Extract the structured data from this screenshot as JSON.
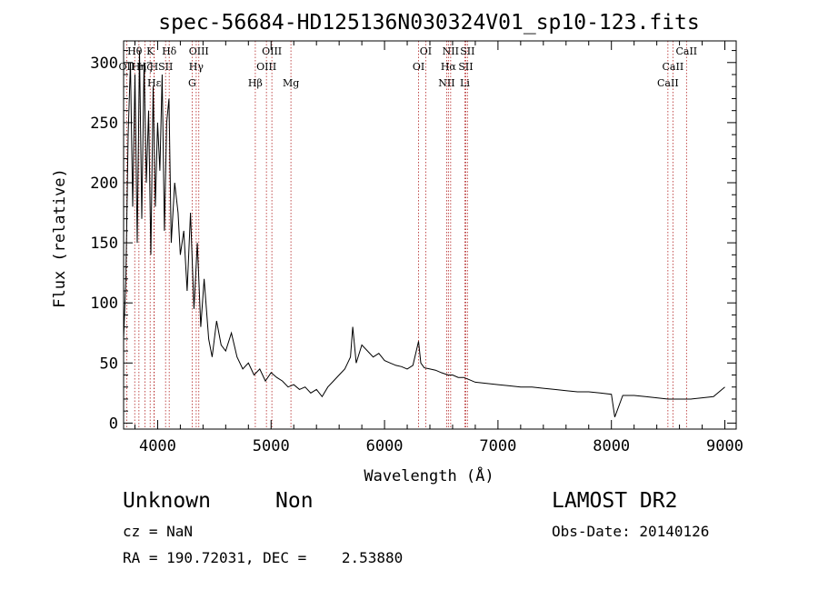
{
  "chart_data": {
    "type": "line",
    "title": "spec-56684-HD125136N030324V01_sp10-123.fits",
    "xlabel": "Wavelength (Å)",
    "ylabel": "Flux (relative)",
    "xlim": [
      3700,
      9100
    ],
    "ylim": [
      -5,
      318
    ],
    "x_ticks": [
      4000,
      5000,
      6000,
      7000,
      8000,
      9000
    ],
    "y_ticks": [
      0,
      50,
      100,
      150,
      200,
      250,
      300
    ],
    "grid": false,
    "series": [
      {
        "x": [
          3700,
          3720,
          3740,
          3760,
          3780,
          3800,
          3820,
          3840,
          3860,
          3880,
          3900,
          3920,
          3940,
          3960,
          3980,
          4000,
          4020,
          4040,
          4060,
          4080,
          4100,
          4120,
          4150,
          4180,
          4200,
          4230,
          4260,
          4290,
          4320,
          4350,
          4380,
          4410,
          4450,
          4480,
          4520,
          4560,
          4600,
          4650,
          4700,
          4750,
          4800,
          4850,
          4900,
          4950,
          5000,
          5050,
          5100,
          5150,
          5200,
          5250,
          5300,
          5350,
          5400,
          5450,
          5500,
          5550,
          5600,
          5650,
          5700,
          5720,
          5750,
          5800,
          5850,
          5900,
          5950,
          6000,
          6050,
          6100,
          6150,
          6200,
          6250,
          6300,
          6320,
          6350,
          6400,
          6450,
          6500,
          6560,
          6600,
          6650,
          6700,
          6750,
          6800,
          6900,
          7000,
          7100,
          7200,
          7300,
          7400,
          7500,
          7600,
          7700,
          7800,
          7900,
          8000,
          8030,
          8100,
          8200,
          8300,
          8400,
          8500,
          8600,
          8700,
          8800,
          8900,
          9000
        ],
        "y": [
          70,
          120,
          240,
          300,
          180,
          290,
          150,
          310,
          170,
          300,
          200,
          260,
          140,
          280,
          180,
          250,
          210,
          290,
          160,
          250,
          270,
          150,
          200,
          175,
          140,
          160,
          110,
          175,
          95,
          150,
          80,
          120,
          70,
          55,
          85,
          65,
          60,
          75,
          55,
          45,
          50,
          40,
          45,
          35,
          42,
          38,
          35,
          30,
          32,
          28,
          30,
          25,
          28,
          22,
          30,
          35,
          40,
          45,
          55,
          80,
          50,
          65,
          60,
          55,
          58,
          52,
          50,
          48,
          47,
          45,
          48,
          68,
          50,
          46,
          45,
          44,
          42,
          40,
          40,
          38,
          38,
          36,
          34,
          33,
          32,
          31,
          30,
          30,
          29,
          28,
          27,
          26,
          26,
          25,
          24,
          5,
          23,
          23,
          22,
          21,
          20,
          20,
          20,
          21,
          22,
          30
        ]
      }
    ],
    "spectral_lines": [
      {
        "label": "OII",
        "x": 3727,
        "row": 1
      },
      {
        "label": "Hθ",
        "x": 3798,
        "row": 0
      },
      {
        "label": "Hη",
        "x": 3835,
        "row": 1
      },
      {
        "label": "Hζ",
        "x": 3889,
        "row": 1
      },
      {
        "label": "K",
        "x": 3934,
        "row": 0
      },
      {
        "label": "H",
        "x": 3968,
        "row": 1
      },
      {
        "label": "Hε",
        "x": 3970,
        "row": 2
      },
      {
        "label": "SII",
        "x": 4070,
        "row": 1
      },
      {
        "label": "Hδ",
        "x": 4102,
        "row": 0
      },
      {
        "label": "G",
        "x": 4304,
        "row": 2
      },
      {
        "label": "Hγ",
        "x": 4340,
        "row": 1
      },
      {
        "label": "OIII",
        "x": 4363,
        "row": 0
      },
      {
        "label": "Hβ",
        "x": 4861,
        "row": 2
      },
      {
        "label": "OIII",
        "x": 4959,
        "row": 1
      },
      {
        "label": "OIII",
        "x": 5007,
        "row": 0
      },
      {
        "label": "Mg",
        "x": 5175,
        "row": 2
      },
      {
        "label": "OI",
        "x": 6300,
        "row": 1
      },
      {
        "label": "OI",
        "x": 6363,
        "row": 0
      },
      {
        "label": "NII",
        "x": 6548,
        "row": 2
      },
      {
        "label": "Hα",
        "x": 6563,
        "row": 1
      },
      {
        "label": "NII",
        "x": 6583,
        "row": 0
      },
      {
        "label": "Li",
        "x": 6708,
        "row": 2
      },
      {
        "label": "SII",
        "x": 6716,
        "row": 1
      },
      {
        "label": "SII",
        "x": 6731,
        "row": 0
      },
      {
        "label": "CaII",
        "x": 8498,
        "row": 2
      },
      {
        "label": "CaII",
        "x": 8542,
        "row": 1
      },
      {
        "label": "CaII",
        "x": 8662,
        "row": 0
      }
    ]
  },
  "info": {
    "class": "Unknown",
    "subclass": "Non",
    "survey": "LAMOST DR2",
    "cz": "cz = NaN",
    "obs_date": "Obs-Date: 20140126",
    "radec": "RA = 190.72031, DEC =    2.53880"
  },
  "colors": {
    "spectrum": "#000000",
    "line_marker": "#b22222",
    "axes": "#000000"
  }
}
